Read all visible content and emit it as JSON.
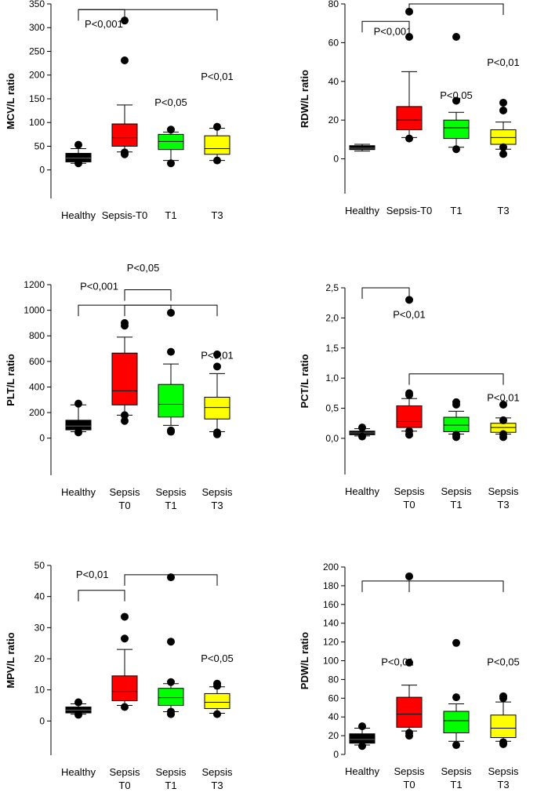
{
  "chart_data": [
    {
      "type": "box",
      "ylabel": "MCV/L ratio",
      "ylim": [
        -60,
        350
      ],
      "yticks": [
        0,
        50,
        100,
        150,
        200,
        250,
        300,
        350
      ],
      "categories": [
        [
          "Healthy"
        ],
        [
          "Sepsis-T0"
        ],
        [
          "T1"
        ],
        [
          "T3"
        ]
      ],
      "colors": [
        "#000000",
        "#ff0000",
        "#00ff00",
        "#ffff00"
      ],
      "boxes": [
        {
          "whisker_low": 14,
          "q1": 17,
          "median": 25,
          "q3": 35,
          "whisker_high": 45,
          "outliers": [
            14,
            53
          ]
        },
        {
          "whisker_low": 38,
          "q1": 50,
          "median": 68,
          "q3": 97,
          "whisker_high": 137,
          "outliers": [
            33,
            37,
            231,
            315
          ]
        },
        {
          "whisker_low": 20,
          "q1": 43,
          "median": 60,
          "q3": 75,
          "whisker_high": 80,
          "outliers": [
            14,
            85
          ]
        },
        {
          "whisker_low": 20,
          "q1": 33,
          "median": 45,
          "q3": 72,
          "whisker_high": 88,
          "outliers": [
            20,
            91
          ]
        }
      ],
      "brackets": [
        {
          "from": 0,
          "to": 3,
          "y": 338
        },
        {
          "from": 0,
          "to": 1,
          "y": 338
        }
      ],
      "annotations": [
        {
          "text": "P<0,001",
          "cat": 0.55,
          "y": 300
        },
        {
          "text": "P<0,05",
          "cat": 2.0,
          "y": 135
        },
        {
          "text": "P<0,01",
          "cat": 3.0,
          "y": 190
        }
      ]
    },
    {
      "type": "box",
      "ylabel": "RDW/L ratio",
      "ylim": [
        -18,
        80
      ],
      "yticks": [
        0,
        20,
        40,
        60,
        80
      ],
      "categories": [
        [
          "Healthy"
        ],
        [
          "Sepsis-T0"
        ],
        [
          "T1"
        ],
        [
          "T3"
        ]
      ],
      "colors": [
        "#000000",
        "#ff0000",
        "#00ff00",
        "#ffff00"
      ],
      "boxes": [
        {
          "whisker_low": 4,
          "q1": 4.8,
          "median": 5.5,
          "q3": 6.8,
          "whisker_high": 7.5,
          "outliers": []
        },
        {
          "whisker_low": 11,
          "q1": 15,
          "median": 20,
          "q3": 27,
          "whisker_high": 45,
          "outliers": [
            10.5,
            63,
            76
          ]
        },
        {
          "whisker_low": 6,
          "q1": 10.5,
          "median": 16,
          "q3": 20,
          "whisker_high": 24,
          "outliers": [
            5,
            30,
            63
          ]
        },
        {
          "whisker_low": 5,
          "q1": 7.5,
          "median": 11,
          "q3": 15,
          "whisker_high": 19,
          "outliers": [
            2.5,
            6,
            25,
            29
          ]
        }
      ],
      "brackets": [
        {
          "from": 0,
          "to": 1,
          "y": 71
        },
        {
          "from": 1,
          "to": 3,
          "y": 80
        }
      ],
      "annotations": [
        {
          "text": "P<0,001",
          "cat": 0.65,
          "y": 64
        },
        {
          "text": "P<0,05",
          "cat": 2.0,
          "y": 31
        },
        {
          "text": "P<0,01",
          "cat": 3.0,
          "y": 48
        }
      ]
    },
    {
      "type": "box",
      "ylabel": "PLT/L ratio",
      "ylim": [
        -290,
        1200
      ],
      "yticks": [
        0,
        200,
        400,
        600,
        800,
        1000,
        1200
      ],
      "categories": [
        [
          "Healthy"
        ],
        [
          "Sepsis",
          "T0"
        ],
        [
          "Sepsis",
          "T1"
        ],
        [
          "Sepsis",
          "T3"
        ]
      ],
      "colors": [
        "#000000",
        "#ff0000",
        "#00ff00",
        "#ffff00"
      ],
      "boxes": [
        {
          "whisker_low": 50,
          "q1": 65,
          "median": 95,
          "q3": 140,
          "whisker_high": 260,
          "outliers": [
            45,
            270
          ]
        },
        {
          "whisker_low": 180,
          "q1": 260,
          "median": 370,
          "q3": 665,
          "whisker_high": 790,
          "outliers": [
            135,
            180,
            880,
            900
          ]
        },
        {
          "whisker_low": 100,
          "q1": 165,
          "median": 265,
          "q3": 420,
          "whisker_high": 580,
          "outliers": [
            50,
            60,
            675,
            980
          ]
        },
        {
          "whisker_low": 50,
          "q1": 150,
          "median": 240,
          "q3": 320,
          "whisker_high": 505,
          "outliers": [
            30,
            45,
            560,
            655
          ]
        }
      ],
      "brackets": [
        {
          "from": 0,
          "to": 2,
          "y": 1040
        },
        {
          "from": 1,
          "to": 3,
          "y": 1040
        }
      ],
      "annotations": [
        {
          "text": "P<0,001",
          "cat": 0.45,
          "y": 1160
        },
        {
          "text": "P<0,05",
          "cat": 1.4,
          "y": 1305
        },
        {
          "text": "P<0,01",
          "cat": 3.0,
          "y": 620
        }
      ],
      "bracket_tops": [
        {
          "from": 1,
          "to": 2,
          "y": 1160
        }
      ]
    },
    {
      "type": "box",
      "ylabel": "PCT/L ratio",
      "ylim": [
        -0.6,
        2.5
      ],
      "yticks": [
        0.0,
        0.5,
        1.0,
        1.5,
        2.0,
        2.5
      ],
      "ytick_labels": [
        "0,0",
        "0,5",
        "1,0",
        "1,5",
        "2,0",
        "2,5"
      ],
      "categories": [
        [
          "Healthy"
        ],
        [
          "Sepsis",
          "T0"
        ],
        [
          "Sepsis",
          "T1"
        ],
        [
          "Sepsis",
          "T3"
        ]
      ],
      "colors": [
        "#000000",
        "#ff0000",
        "#00ff00",
        "#ffff00"
      ],
      "boxes": [
        {
          "whisker_low": 0.04,
          "q1": 0.06,
          "median": 0.09,
          "q3": 0.12,
          "whisker_high": 0.16,
          "outliers": [
            0.03,
            0.18
          ]
        },
        {
          "whisker_low": 0.12,
          "q1": 0.18,
          "median": 0.28,
          "q3": 0.54,
          "whisker_high": 0.66,
          "outliers": [
            0.06,
            0.12,
            0.72,
            0.75,
            2.3
          ]
        },
        {
          "whisker_low": 0.07,
          "q1": 0.11,
          "median": 0.22,
          "q3": 0.35,
          "whisker_high": 0.45,
          "outliers": [
            0.02,
            0.06,
            0.56,
            0.6
          ]
        },
        {
          "whisker_low": 0.07,
          "q1": 0.1,
          "median": 0.18,
          "q3": 0.25,
          "whisker_high": 0.34,
          "outliers": [
            0.02,
            0.07,
            0.3,
            0.56
          ]
        }
      ],
      "brackets": [
        {
          "from": 0,
          "to": 1,
          "y": 2.5
        },
        {
          "from": 1,
          "to": 3,
          "y": 1.07
        }
      ],
      "annotations": [
        {
          "text": "P<0,01",
          "cat": 1.0,
          "y": 2.0
        },
        {
          "text": "P<0,01",
          "cat": 3.0,
          "y": 0.62
        }
      ]
    },
    {
      "type": "box",
      "ylabel": "MPV/L ratio",
      "ylim": [
        -11,
        50
      ],
      "yticks": [
        0,
        10,
        20,
        30,
        40,
        50
      ],
      "categories": [
        [
          "Healthy"
        ],
        [
          "Sepsis",
          "T0"
        ],
        [
          "Sepsis",
          "T1"
        ],
        [
          "Sepsis",
          "T3"
        ]
      ],
      "colors": [
        "#000000",
        "#ff0000",
        "#00ff00",
        "#ffff00"
      ],
      "boxes": [
        {
          "whisker_low": 2.2,
          "q1": 2.6,
          "median": 3.5,
          "q3": 4.5,
          "whisker_high": 5.5,
          "outliers": [
            2,
            6
          ]
        },
        {
          "whisker_low": 5,
          "q1": 6.5,
          "median": 9.5,
          "q3": 14.5,
          "whisker_high": 23,
          "outliers": [
            4.5,
            26.5,
            33.5
          ]
        },
        {
          "whisker_low": 3,
          "q1": 5,
          "median": 7.5,
          "q3": 10.5,
          "whisker_high": 12,
          "outliers": [
            2.2,
            3,
            12.5,
            25.5,
            46.2
          ]
        },
        {
          "whisker_low": 2.5,
          "q1": 4,
          "median": 6,
          "q3": 8.8,
          "whisker_high": 11,
          "outliers": [
            2.2,
            11.3,
            12
          ]
        }
      ],
      "brackets": [
        {
          "from": 0,
          "to": 1,
          "y": 42
        },
        {
          "from": 1,
          "to": 3,
          "y": 47
        }
      ],
      "annotations": [
        {
          "text": "P<0,01",
          "cat": 0.3,
          "y": 46
        },
        {
          "text": "P<0,05",
          "cat": 3.0,
          "y": 19
        }
      ]
    },
    {
      "type": "box",
      "ylabel": "PDW/L ratio",
      "ylim": [
        0,
        200
      ],
      "yticks": [
        0,
        20,
        40,
        60,
        80,
        100,
        120,
        140,
        160,
        180,
        200
      ],
      "categories": [
        [
          "Healthy"
        ],
        [
          "Sepsis",
          "T0"
        ],
        [
          "Sepsis",
          "T1"
        ],
        [
          "Sepsis",
          "T3"
        ]
      ],
      "colors": [
        "#000000",
        "#ff0000",
        "#00ff00",
        "#ffff00"
      ],
      "boxes": [
        {
          "whisker_low": 10,
          "q1": 12,
          "median": 16,
          "q3": 22,
          "whisker_high": 28,
          "outliers": [
            9,
            30
          ]
        },
        {
          "whisker_low": 25,
          "q1": 29,
          "median": 43,
          "q3": 61,
          "whisker_high": 74,
          "outliers": [
            20,
            23,
            98,
            190
          ]
        },
        {
          "whisker_low": 14,
          "q1": 23,
          "median": 36,
          "q3": 46,
          "whisker_high": 54,
          "outliers": [
            10,
            61,
            119
          ]
        },
        {
          "whisker_low": 14,
          "q1": 18,
          "median": 28,
          "q3": 42,
          "whisker_high": 56,
          "outliers": [
            11,
            13,
            60,
            62
          ]
        }
      ],
      "brackets": [
        {
          "from": 0,
          "to": 1,
          "y": 185
        },
        {
          "from": 1,
          "to": 3,
          "y": 185
        }
      ],
      "annotations": [
        {
          "text": "P<0,01",
          "cat": 0.75,
          "y": 95
        },
        {
          "text": "P<0,05",
          "cat": 3.0,
          "y": 95
        }
      ]
    }
  ]
}
